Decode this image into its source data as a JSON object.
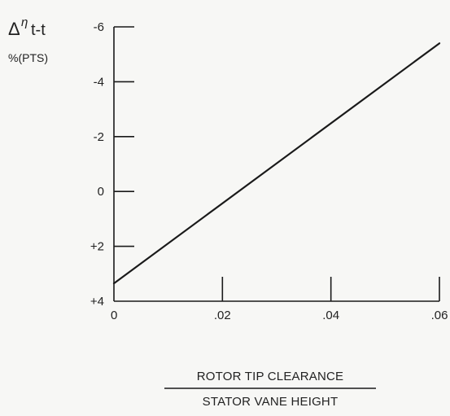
{
  "chart_data": {
    "type": "line",
    "title": "",
    "ylabel": {
      "symbol": "Δ",
      "eta": "η",
      "subscript": "t-t",
      "unit": "%(PTS)"
    },
    "xlabel": {
      "numerator": "ROTOR TIP CLEARANCE",
      "denominator": "STATOR VANE HEIGHT"
    },
    "x_ticks": [
      {
        "value": 0,
        "label": "0"
      },
      {
        "value": 0.02,
        "label": ".02"
      },
      {
        "value": 0.04,
        "label": ".04"
      },
      {
        "value": 0.06,
        "label": ".06"
      }
    ],
    "y_ticks": [
      {
        "value": -6,
        "label": "-6"
      },
      {
        "value": -4,
        "label": "-4"
      },
      {
        "value": -2,
        "label": "-2"
      },
      {
        "value": 0,
        "label": "0"
      },
      {
        "value": 2,
        "label": "+2"
      },
      {
        "value": 4,
        "label": "+4"
      }
    ],
    "xlim": [
      0,
      0.06
    ],
    "ylim": [
      4,
      -6
    ],
    "y_inverted": true,
    "grid": false,
    "series": [
      {
        "x": [
          0.0,
          0.06
        ],
        "y": [
          3.35,
          -5.4
        ]
      }
    ],
    "line_color": "#1a1a1a"
  }
}
